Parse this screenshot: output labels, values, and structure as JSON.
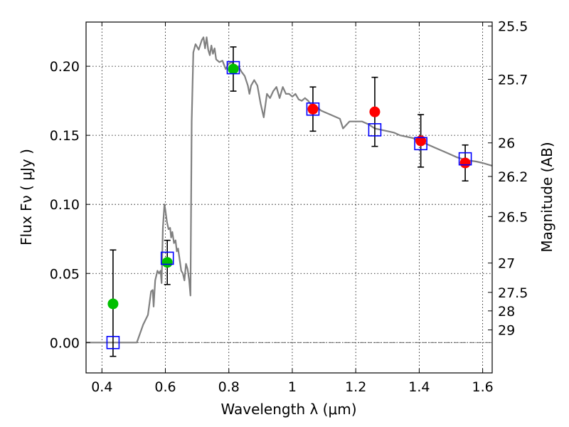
{
  "chart_data": {
    "type": "scatter",
    "xlabel": "Wavelength  λ (μm)",
    "ylabel": "Flux  Fν  ( μJy )",
    "y2label": "Magnitude (AB)",
    "xlim": [
      0.35,
      1.63
    ],
    "ylim": [
      -0.022,
      0.232
    ],
    "grid": true,
    "x_ticks": [
      {
        "value": 0.4,
        "label": "0.4"
      },
      {
        "value": 0.6,
        "label": "0.6"
      },
      {
        "value": 0.8,
        "label": "0.8"
      },
      {
        "value": 1.0,
        "label": "1"
      },
      {
        "value": 1.2,
        "label": "1.2"
      },
      {
        "value": 1.4,
        "label": "1.4"
      },
      {
        "value": 1.6,
        "label": "1.6"
      }
    ],
    "y_ticks": [
      {
        "value": 0.0,
        "label": "0.00"
      },
      {
        "value": 0.05,
        "label": "0.05"
      },
      {
        "value": 0.1,
        "label": "0.10"
      },
      {
        "value": 0.15,
        "label": "0.15"
      },
      {
        "value": 0.2,
        "label": "0.20"
      }
    ],
    "y2_ticks": [
      {
        "mag": 25.5,
        "label": "25.5"
      },
      {
        "mag": 25.7,
        "label": "25.7"
      },
      {
        "mag": 26.0,
        "label": "26"
      },
      {
        "mag": 26.2,
        "label": "26.2"
      },
      {
        "mag": 26.5,
        "label": "26.5"
      },
      {
        "mag": 27.0,
        "label": "27"
      },
      {
        "mag": 27.5,
        "label": "27.5"
      },
      {
        "mag": 28.0,
        "label": "28"
      },
      {
        "mag": 29.0,
        "label": "29"
      }
    ],
    "model_spectrum": {
      "color": "#808080",
      "points": [
        [
          0.35,
          0.0
        ],
        [
          0.5,
          0.0
        ],
        [
          0.51,
          0.0
        ],
        [
          0.53,
          0.013
        ],
        [
          0.545,
          0.02
        ],
        [
          0.555,
          0.037
        ],
        [
          0.56,
          0.038
        ],
        [
          0.563,
          0.026
        ],
        [
          0.568,
          0.045
        ],
        [
          0.575,
          0.052
        ],
        [
          0.58,
          0.05
        ],
        [
          0.585,
          0.052
        ],
        [
          0.588,
          0.043
        ],
        [
          0.592,
          0.083
        ],
        [
          0.597,
          0.1
        ],
        [
          0.6,
          0.096
        ],
        [
          0.605,
          0.087
        ],
        [
          0.61,
          0.082
        ],
        [
          0.615,
          0.083
        ],
        [
          0.618,
          0.076
        ],
        [
          0.622,
          0.08
        ],
        [
          0.627,
          0.072
        ],
        [
          0.632,
          0.074
        ],
        [
          0.636,
          0.066
        ],
        [
          0.64,
          0.068
        ],
        [
          0.645,
          0.06
        ],
        [
          0.65,
          0.052
        ],
        [
          0.655,
          0.05
        ],
        [
          0.66,
          0.045
        ],
        [
          0.665,
          0.057
        ],
        [
          0.67,
          0.053
        ],
        [
          0.675,
          0.045
        ],
        [
          0.679,
          0.034
        ],
        [
          0.683,
          0.16
        ],
        [
          0.688,
          0.21
        ],
        [
          0.695,
          0.216
        ],
        [
          0.705,
          0.212
        ],
        [
          0.715,
          0.219
        ],
        [
          0.72,
          0.221
        ],
        [
          0.725,
          0.213
        ],
        [
          0.73,
          0.221
        ],
        [
          0.735,
          0.212
        ],
        [
          0.74,
          0.208
        ],
        [
          0.745,
          0.215
        ],
        [
          0.75,
          0.209
        ],
        [
          0.755,
          0.213
        ],
        [
          0.76,
          0.205
        ],
        [
          0.77,
          0.203
        ],
        [
          0.78,
          0.204
        ],
        [
          0.79,
          0.198
        ],
        [
          0.8,
          0.202
        ],
        [
          0.81,
          0.203
        ],
        [
          0.82,
          0.199
        ],
        [
          0.83,
          0.2
        ],
        [
          0.84,
          0.196
        ],
        [
          0.85,
          0.193
        ],
        [
          0.86,
          0.186
        ],
        [
          0.865,
          0.18
        ],
        [
          0.87,
          0.186
        ],
        [
          0.88,
          0.19
        ],
        [
          0.89,
          0.186
        ],
        [
          0.9,
          0.173
        ],
        [
          0.91,
          0.163
        ],
        [
          0.92,
          0.18
        ],
        [
          0.93,
          0.177
        ],
        [
          0.94,
          0.182
        ],
        [
          0.95,
          0.185
        ],
        [
          0.96,
          0.177
        ],
        [
          0.97,
          0.185
        ],
        [
          0.98,
          0.18
        ],
        [
          0.99,
          0.18
        ],
        [
          1.0,
          0.178
        ],
        [
          1.01,
          0.18
        ],
        [
          1.02,
          0.176
        ],
        [
          1.03,
          0.175
        ],
        [
          1.04,
          0.177
        ],
        [
          1.05,
          0.175
        ],
        [
          1.06,
          0.172
        ],
        [
          1.07,
          0.172
        ],
        [
          1.08,
          0.17
        ],
        [
          1.09,
          0.168
        ],
        [
          1.1,
          0.167
        ],
        [
          1.11,
          0.166
        ],
        [
          1.13,
          0.164
        ],
        [
          1.15,
          0.162
        ],
        [
          1.16,
          0.155
        ],
        [
          1.18,
          0.16
        ],
        [
          1.2,
          0.16
        ],
        [
          1.22,
          0.16
        ],
        [
          1.24,
          0.158
        ],
        [
          1.26,
          0.155
        ],
        [
          1.28,
          0.154
        ],
        [
          1.3,
          0.153
        ],
        [
          1.32,
          0.152
        ],
        [
          1.34,
          0.15
        ],
        [
          1.36,
          0.149
        ],
        [
          1.38,
          0.148
        ],
        [
          1.4,
          0.146
        ],
        [
          1.42,
          0.144
        ],
        [
          1.45,
          0.141
        ],
        [
          1.48,
          0.138
        ],
        [
          1.5,
          0.136
        ],
        [
          1.52,
          0.134
        ],
        [
          1.55,
          0.132
        ],
        [
          1.58,
          0.131
        ],
        [
          1.6,
          0.13
        ],
        [
          1.63,
          0.128
        ]
      ]
    },
    "series": [
      {
        "marker": "circle",
        "color": "#00bf00",
        "points": [
          {
            "x": 0.435,
            "y": 0.028,
            "yerr_lo": 0.038,
            "yerr_hi": 0.039
          },
          {
            "x": 0.606,
            "y": 0.058,
            "yerr_lo": 0.016,
            "yerr_hi": 0.016
          },
          {
            "x": 0.814,
            "y": 0.198,
            "yerr_lo": 0.016,
            "yerr_hi": 0.016
          }
        ]
      },
      {
        "marker": "circle",
        "color": "#ff0000",
        "points": [
          {
            "x": 1.065,
            "y": 0.169,
            "yerr_lo": 0.016,
            "yerr_hi": 0.016
          },
          {
            "x": 1.26,
            "y": 0.167,
            "yerr_lo": 0.025,
            "yerr_hi": 0.025
          },
          {
            "x": 1.405,
            "y": 0.146,
            "yerr_lo": 0.019,
            "yerr_hi": 0.019
          },
          {
            "x": 1.545,
            "y": 0.13,
            "yerr_lo": 0.013,
            "yerr_hi": 0.013
          }
        ]
      },
      {
        "marker": "square",
        "color": "#0000ff",
        "points": [
          {
            "x": 0.435,
            "y": 0.0
          },
          {
            "x": 0.606,
            "y": 0.061
          },
          {
            "x": 0.814,
            "y": 0.199
          },
          {
            "x": 1.065,
            "y": 0.169
          },
          {
            "x": 1.26,
            "y": 0.154
          },
          {
            "x": 1.405,
            "y": 0.144
          },
          {
            "x": 1.545,
            "y": 0.133
          }
        ]
      }
    ]
  }
}
